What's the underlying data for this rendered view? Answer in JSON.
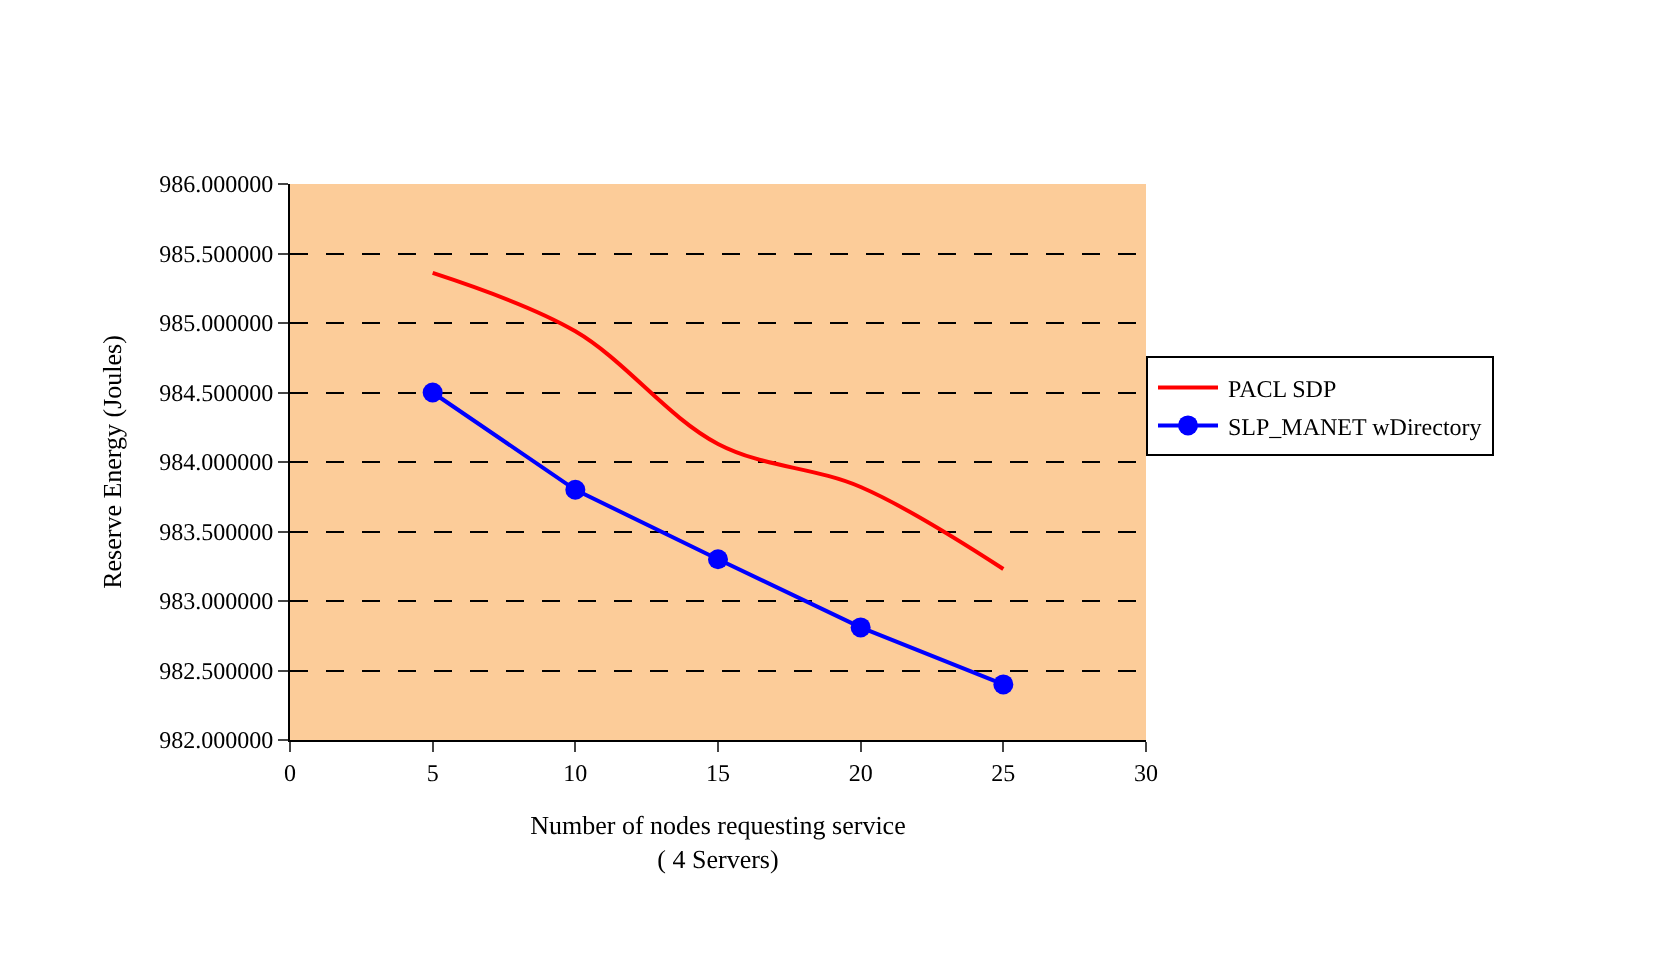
{
  "chart_data": {
    "type": "line",
    "xlabel": "Number of nodes requesting service\n( 4 Servers)",
    "ylabel": "Reserve Energy (Joules)",
    "x": [
      5,
      10,
      15,
      20,
      25
    ],
    "series": [
      {
        "name": "PACL SDP",
        "color": "#ff0000",
        "values": [
          985.36,
          984.94,
          984.13,
          983.82,
          983.23
        ],
        "marker": "none"
      },
      {
        "name": "SLP_MANET wDirectory",
        "color": "#0000ff",
        "values": [
          984.5,
          983.8,
          983.3,
          982.81,
          982.4
        ],
        "marker": "circle"
      }
    ],
    "xlim": [
      0,
      30
    ],
    "xticks": [
      0,
      5,
      10,
      15,
      20,
      25,
      30
    ],
    "ylim": [
      982,
      986
    ],
    "yticks": [
      {
        "value": 982,
        "label": "982.000000"
      },
      {
        "value": 982.5,
        "label": "982.500000"
      },
      {
        "value": 983,
        "label": "983.000000"
      },
      {
        "value": 983.5,
        "label": "983.500000"
      },
      {
        "value": 984,
        "label": "984.000000"
      },
      {
        "value": 984.5,
        "label": "984.500000"
      },
      {
        "value": 985,
        "label": "985.000000"
      },
      {
        "value": 985.5,
        "label": "985.500000"
      },
      {
        "value": 986,
        "label": "986.000000"
      }
    ],
    "grid": "y",
    "legend": "right",
    "line_style": "solid"
  }
}
